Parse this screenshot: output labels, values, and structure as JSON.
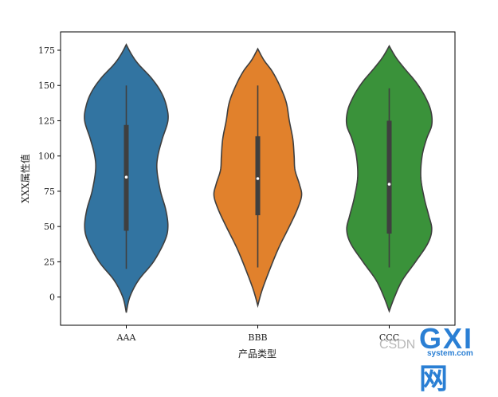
{
  "chart_data": {
    "type": "violin",
    "xlabel": "产品类型",
    "ylabel": "XXX属性值",
    "categories": [
      "AAA",
      "BBB",
      "CCC"
    ],
    "colors": [
      "#3274a1",
      "#e1812c",
      "#3a923a"
    ],
    "ylim": [
      -20,
      188
    ],
    "yticks": [
      0,
      25,
      50,
      75,
      100,
      125,
      150,
      175
    ],
    "grid": false,
    "violins": [
      {
        "category": "AAA",
        "color": "#3274a1",
        "min": 20,
        "q1": 47,
        "median": 85,
        "q3": 122,
        "max": 150,
        "extent": [
          -11,
          179
        ],
        "profile": [
          [
            -11,
            0
          ],
          [
            0,
            0.08
          ],
          [
            12,
            0.28
          ],
          [
            25,
            0.62
          ],
          [
            40,
            0.88
          ],
          [
            50,
            0.95
          ],
          [
            62,
            0.9
          ],
          [
            75,
            0.78
          ],
          [
            90,
            0.7
          ],
          [
            100,
            0.72
          ],
          [
            112,
            0.82
          ],
          [
            125,
            0.95
          ],
          [
            135,
            0.92
          ],
          [
            145,
            0.8
          ],
          [
            155,
            0.58
          ],
          [
            165,
            0.28
          ],
          [
            172,
            0.12
          ],
          [
            179,
            0
          ]
        ]
      },
      {
        "category": "BBB",
        "color": "#e1812c",
        "min": 21,
        "q1": 58,
        "median": 84,
        "q3": 114,
        "max": 150,
        "extent": [
          -6,
          176
        ],
        "profile": [
          [
            -6,
            0
          ],
          [
            5,
            0.1
          ],
          [
            20,
            0.28
          ],
          [
            35,
            0.48
          ],
          [
            50,
            0.72
          ],
          [
            62,
            0.9
          ],
          [
            72,
            1.0
          ],
          [
            80,
            0.95
          ],
          [
            90,
            0.85
          ],
          [
            100,
            0.83
          ],
          [
            112,
            0.8
          ],
          [
            125,
            0.72
          ],
          [
            138,
            0.65
          ],
          [
            150,
            0.5
          ],
          [
            160,
            0.33
          ],
          [
            168,
            0.14
          ],
          [
            176,
            0
          ]
        ]
      },
      {
        "category": "CCC",
        "color": "#3a923a",
        "min": 21,
        "q1": 45,
        "median": 80,
        "q3": 125,
        "max": 148,
        "extent": [
          -10,
          178
        ],
        "profile": [
          [
            -10,
            0
          ],
          [
            0,
            0.12
          ],
          [
            12,
            0.3
          ],
          [
            25,
            0.6
          ],
          [
            38,
            0.88
          ],
          [
            48,
            0.97
          ],
          [
            58,
            0.9
          ],
          [
            70,
            0.8
          ],
          [
            85,
            0.72
          ],
          [
            100,
            0.75
          ],
          [
            112,
            0.85
          ],
          [
            122,
            0.97
          ],
          [
            132,
            0.95
          ],
          [
            142,
            0.82
          ],
          [
            152,
            0.62
          ],
          [
            162,
            0.35
          ],
          [
            170,
            0.15
          ],
          [
            178,
            0
          ]
        ]
      }
    ]
  },
  "watermark": {
    "csdn": "CSDN",
    "logo": "GXI网",
    "site": "system.com"
  }
}
